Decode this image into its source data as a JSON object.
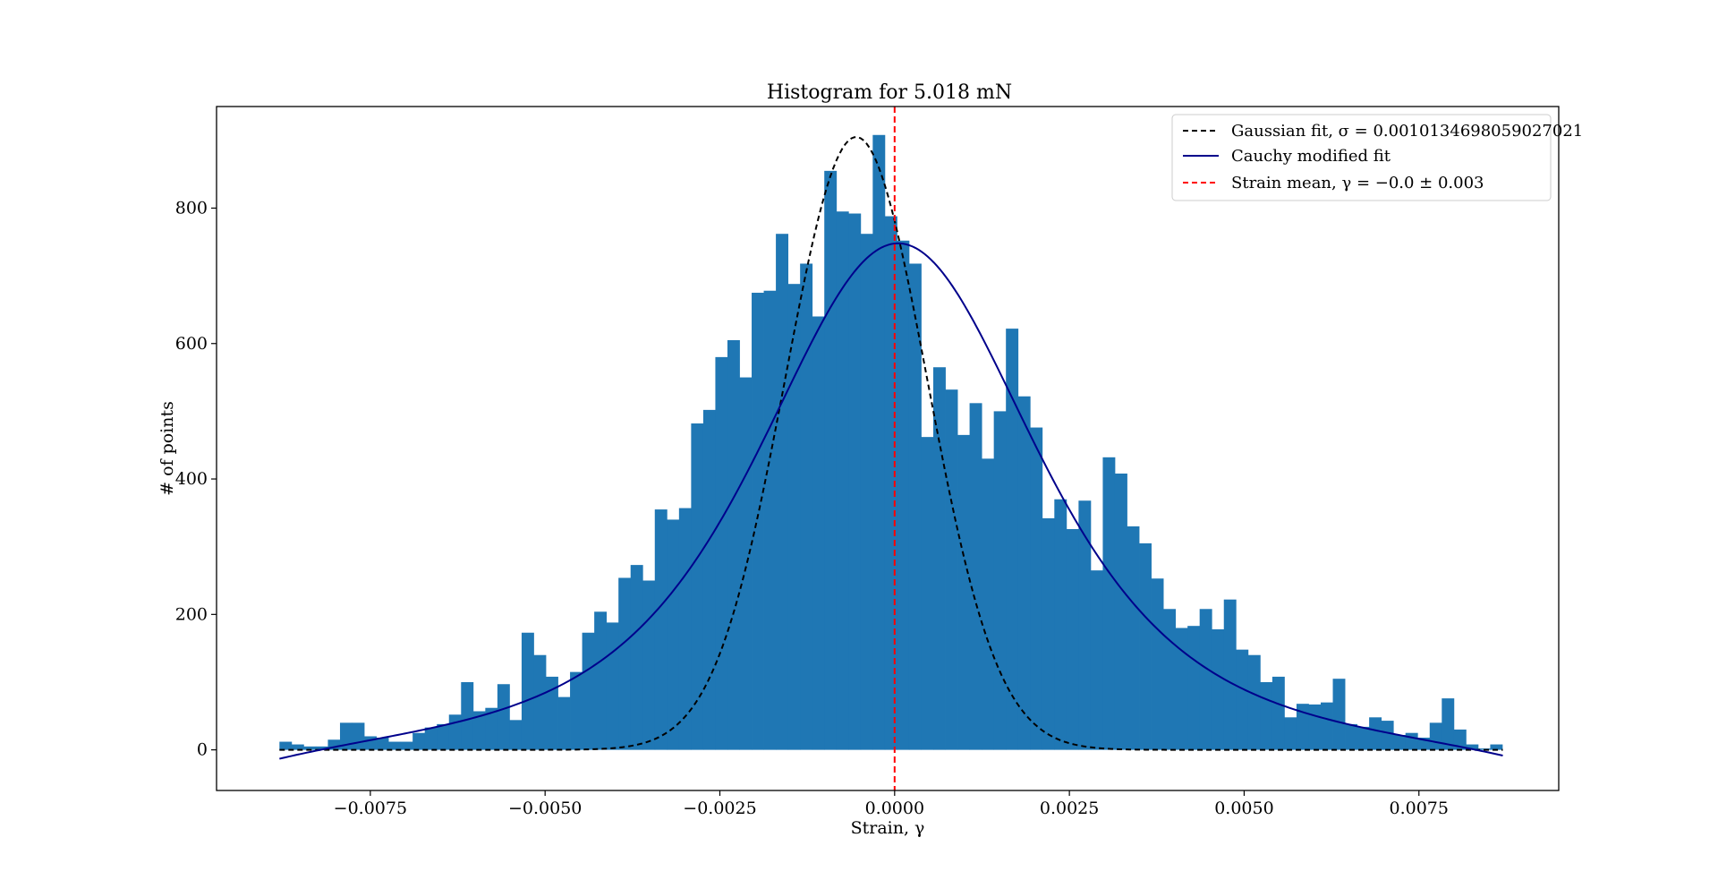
{
  "chart_data": {
    "type": "bar",
    "title": "Histogram for 5.018 mN",
    "xlabel": "Strain, γ",
    "ylabel": "# of points",
    "xlim": [
      -0.0097,
      0.0095
    ],
    "ylim": [
      -60,
      950
    ],
    "xticks": [
      -0.0075,
      -0.005,
      -0.0025,
      0.0,
      0.0025,
      0.005,
      0.0075
    ],
    "xtick_labels": [
      "−0.0075",
      "−0.0050",
      "−0.0025",
      "0.0000",
      "0.0025",
      "0.0050",
      "0.0075"
    ],
    "yticks": [
      0,
      200,
      400,
      600,
      800
    ],
    "ytick_labels": [
      "0",
      "200",
      "400",
      "600",
      "800"
    ],
    "grid": false,
    "legend_position": "top-right",
    "bar_color": "#1f77b4",
    "bins": {
      "start": -0.0088,
      "width": 0.0001732,
      "counts": [
        12,
        8,
        5,
        5,
        15,
        40,
        40,
        20,
        18,
        12,
        12,
        25,
        33,
        38,
        52,
        100,
        57,
        62,
        97,
        44,
        173,
        140,
        108,
        78,
        115,
        173,
        204,
        188,
        254,
        273,
        250,
        355,
        340,
        357,
        482,
        502,
        580,
        605,
        550,
        675,
        678,
        762,
        688,
        718,
        640,
        855,
        795,
        792,
        762,
        908,
        788,
        752,
        718,
        462,
        565,
        532,
        465,
        512,
        430,
        500,
        622,
        522,
        476,
        342,
        370,
        326,
        368,
        265,
        432,
        408,
        330,
        305,
        253,
        208,
        180,
        183,
        208,
        178,
        222,
        148,
        140,
        100,
        108,
        48,
        68,
        67,
        70,
        105,
        38,
        34,
        48,
        43,
        22,
        25,
        18,
        40,
        76,
        30,
        8,
        2,
        8
      ]
    },
    "series": [
      {
        "name": "Gaussian fit, σ = 0.0010134698059027021",
        "kind": "gaussian",
        "amplitude": 905,
        "mean": -0.00055,
        "sigma": 0.0010134698059027021,
        "color": "#000000",
        "dash": true
      },
      {
        "name": "Cauchy modified fit",
        "kind": "cauchy",
        "amplitude": 748,
        "center": 5e-05,
        "width": 0.00375,
        "power": 2.1,
        "color": "#00008b",
        "dash": false
      },
      {
        "name": "Strain mean, γ = −0.0 ± 0.003",
        "kind": "vline",
        "x": 0.0,
        "color": "#ff0000",
        "dash": true
      }
    ],
    "curve_range": [
      -0.0088,
      0.0087
    ]
  }
}
